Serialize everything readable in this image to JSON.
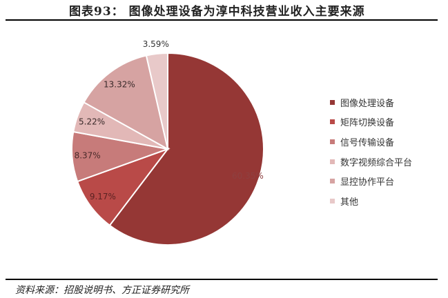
{
  "title": "图表93：  图像处理设备为淳中科技营业收入主要来源",
  "source": "资料来源：招股说明书、方正证券研究所",
  "chart_data": {
    "type": "pie",
    "categories": [
      "图像处理设备",
      "矩阵切换设备",
      "信号传输设备",
      "数字视频综合平台",
      "显控协作平台",
      "其他"
    ],
    "values": [
      60.35,
      9.17,
      8.37,
      5.22,
      13.32,
      3.59
    ],
    "labels": [
      "60.35%",
      "9.17%",
      "8.37%",
      "5.22%",
      "13.32%",
      "3.59%"
    ],
    "colors": [
      "#953735",
      "#b94a48",
      "#c77b7a",
      "#e2b8b7",
      "#d6a3a2",
      "#e8c9c9"
    ],
    "start_angle_deg": 0,
    "direction": "clockwise",
    "legend_position": "right"
  }
}
